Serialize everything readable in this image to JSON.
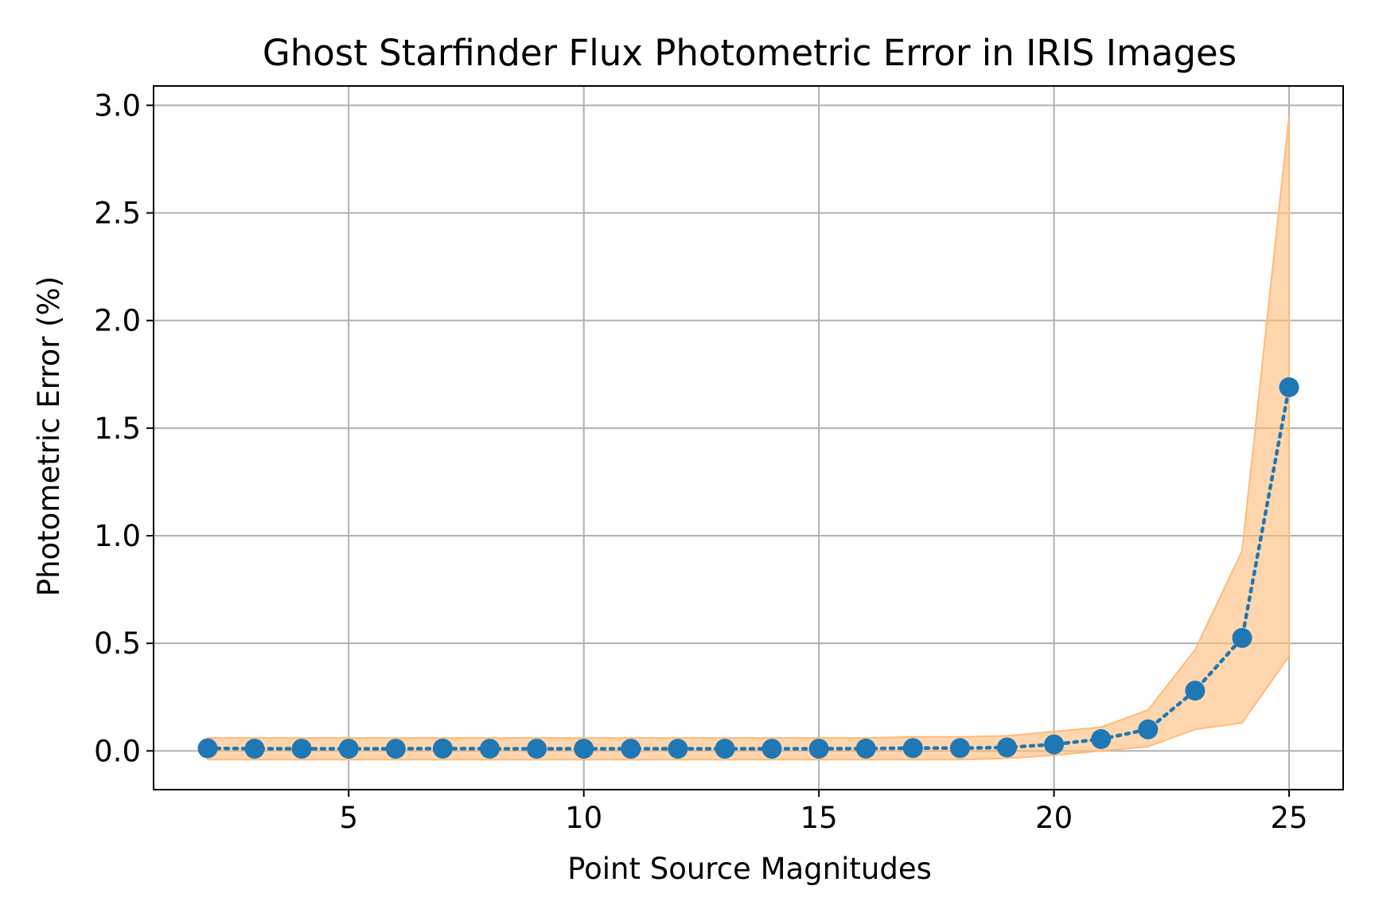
{
  "chart_data": {
    "type": "line",
    "title": "Ghost Starfinder Flux Photometric Error in IRIS Images",
    "xlabel": "Point Source Magnitudes",
    "ylabel": "Photometric Error (%)",
    "xlim": [
      0.85,
      26.15
    ],
    "ylim": [
      -0.18,
      3.09
    ],
    "x_ticks": [
      5,
      10,
      15,
      20,
      25
    ],
    "x_tick_labels": [
      "5",
      "10",
      "15",
      "20",
      "25"
    ],
    "y_ticks": [
      0.0,
      0.5,
      1.0,
      1.5,
      2.0,
      2.5,
      3.0
    ],
    "y_tick_labels": [
      "0.0",
      "0.5",
      "1.0",
      "1.5",
      "2.0",
      "2.5",
      "3.0"
    ],
    "grid": true,
    "series": [
      {
        "x": [
          2,
          3,
          4,
          5,
          6,
          7,
          8,
          9,
          10,
          11,
          12,
          13,
          14,
          15,
          16,
          17,
          18,
          19,
          20,
          21,
          22,
          23,
          24,
          25
        ],
        "values": [
          0.012,
          0.01,
          0.01,
          0.01,
          0.01,
          0.011,
          0.01,
          0.01,
          0.01,
          0.01,
          0.01,
          0.01,
          0.01,
          0.01,
          0.011,
          0.013,
          0.013,
          0.016,
          0.03,
          0.055,
          0.1,
          0.28,
          0.525,
          1.69
        ],
        "band_upper": [
          0.06,
          0.06,
          0.06,
          0.06,
          0.06,
          0.06,
          0.06,
          0.06,
          0.06,
          0.06,
          0.06,
          0.06,
          0.06,
          0.06,
          0.06,
          0.065,
          0.065,
          0.07,
          0.09,
          0.11,
          0.19,
          0.47,
          0.93,
          2.95
        ],
        "band_lower": [
          -0.04,
          -0.04,
          -0.04,
          -0.04,
          -0.04,
          -0.04,
          -0.04,
          -0.04,
          -0.04,
          -0.04,
          -0.04,
          -0.04,
          -0.04,
          -0.04,
          -0.04,
          -0.04,
          -0.04,
          -0.035,
          -0.02,
          0.0,
          0.02,
          0.1,
          0.13,
          0.44
        ],
        "line_style": "dotted",
        "marker": "circle",
        "color": "#1f77b4",
        "band_color": "#ffbb78"
      }
    ]
  }
}
